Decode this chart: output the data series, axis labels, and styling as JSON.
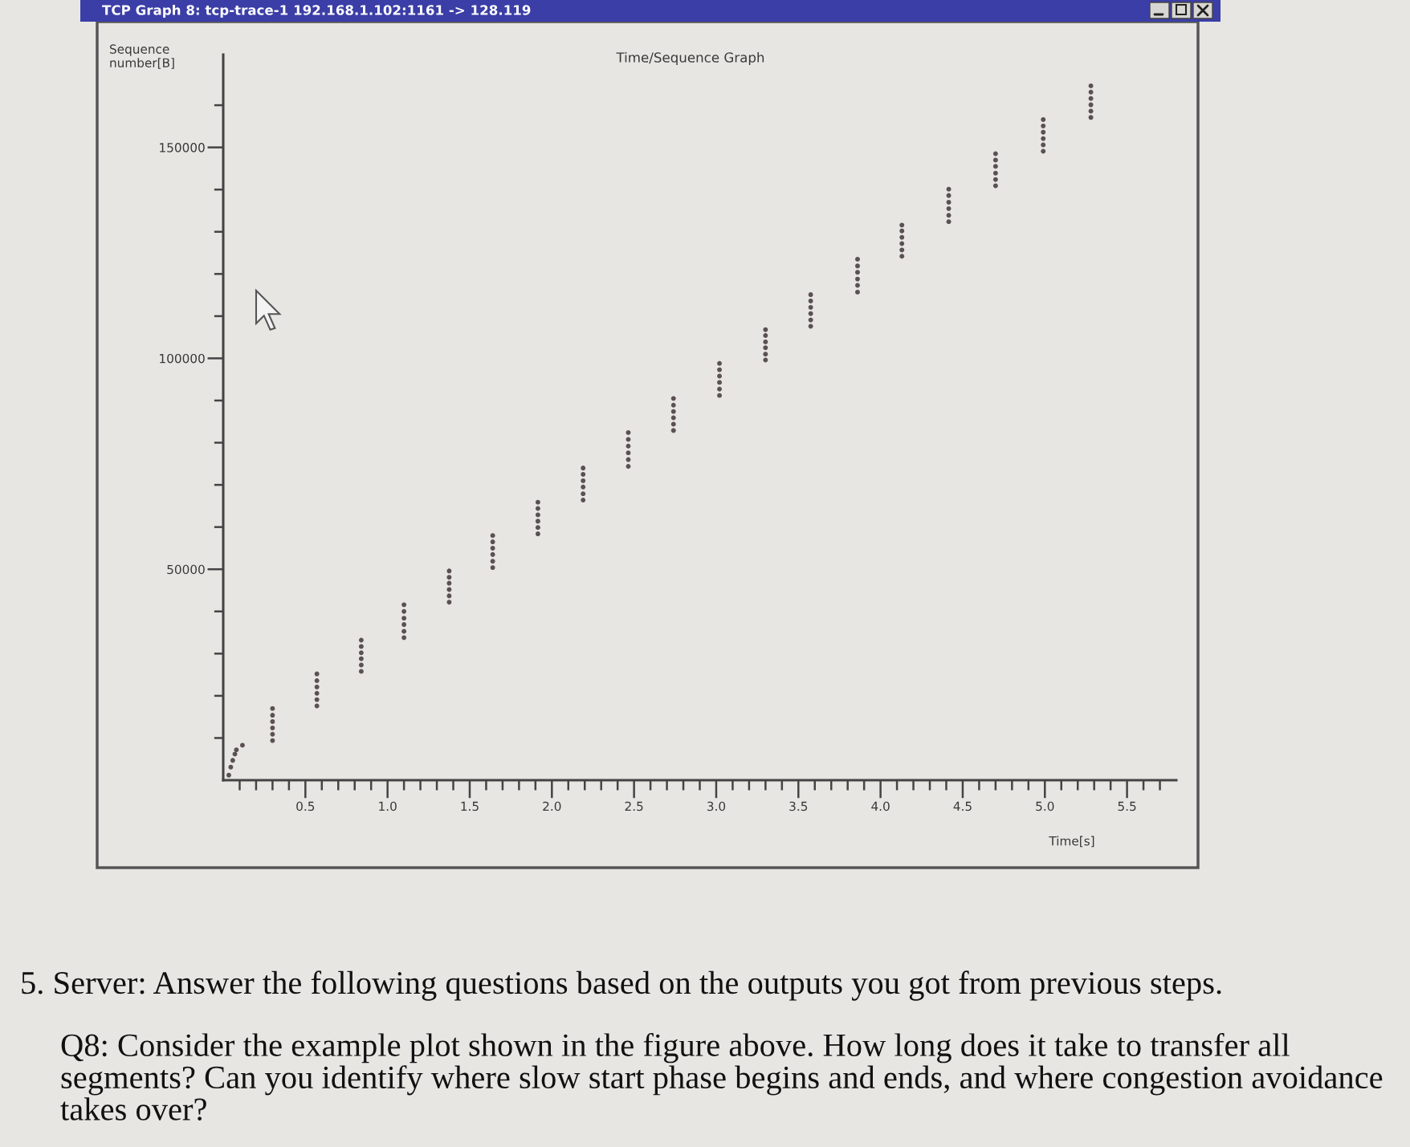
{
  "chart_data": {
    "type": "scatter",
    "title": "TCP Graph 8: tcp-trace-1 192.168.1.102:1161 -> 128.119",
    "subtitle": "Time/Sequence Graph",
    "xlabel": "Time[s]",
    "ylabel": "Sequence number[B]",
    "marker": "circle",
    "xlim": [
      0,
      5.8
    ],
    "ylim": [
      0,
      172000
    ],
    "xticks": [
      {
        "value": 0.1,
        "label": null
      },
      {
        "value": 0.2,
        "label": null
      },
      {
        "value": 0.3,
        "label": null
      },
      {
        "value": 0.4,
        "label": null
      },
      0.5,
      {
        "value": 0.6,
        "label": null
      },
      {
        "value": 0.7,
        "label": null
      },
      {
        "value": 0.8,
        "label": null
      },
      {
        "value": 0.9,
        "label": null
      },
      {
        "value": 1,
        "label": "1.0"
      },
      {
        "value": 1.1,
        "label": null
      },
      {
        "value": 1.2,
        "label": null
      },
      {
        "value": 1.3,
        "label": null
      },
      {
        "value": 1.4,
        "label": null
      },
      1.5,
      {
        "value": 1.6,
        "label": null
      },
      {
        "value": 1.7,
        "label": null
      },
      {
        "value": 1.8,
        "label": null
      },
      {
        "value": 1.9,
        "label": null
      },
      {
        "value": 2,
        "label": "2.0"
      },
      {
        "value": 2.1,
        "label": null
      },
      {
        "value": 2.2,
        "label": null
      },
      {
        "value": 2.3,
        "label": null
      },
      {
        "value": 2.4,
        "label": null
      },
      2.5,
      {
        "value": 2.6,
        "label": null
      },
      {
        "value": 2.7,
        "label": null
      },
      {
        "value": 2.8,
        "label": null
      },
      {
        "value": 2.9,
        "label": null
      },
      {
        "value": 3,
        "label": "3.0"
      },
      {
        "value": 3.1,
        "label": null
      },
      {
        "value": 3.2,
        "label": null
      },
      {
        "value": 3.3,
        "label": null
      },
      {
        "value": 3.4,
        "label": null
      },
      3.5,
      {
        "value": 3.6,
        "label": null
      },
      {
        "value": 3.7,
        "label": null
      },
      {
        "value": 3.8,
        "label": null
      },
      {
        "value": 3.9,
        "label": null
      },
      {
        "value": 4,
        "label": "4.0"
      },
      {
        "value": 4.1,
        "label": null
      },
      {
        "value": 4.2,
        "label": null
      },
      {
        "value": 4.3,
        "label": null
      },
      {
        "value": 4.4,
        "label": null
      },
      4.5,
      {
        "value": 4.6,
        "label": null
      },
      {
        "value": 4.7,
        "label": null
      },
      {
        "value": 4.8,
        "label": null
      },
      {
        "value": 4.9,
        "label": null
      },
      {
        "value": 5,
        "label": "5.0"
      },
      {
        "value": 5.1,
        "label": null
      },
      {
        "value": 5.2,
        "label": null
      },
      {
        "value": 5.3,
        "label": null
      },
      {
        "value": 5.4,
        "label": null
      },
      5.5,
      {
        "value": 5.6,
        "label": null
      },
      {
        "value": 5.7,
        "label": null
      }
    ],
    "yticks": [
      {
        "value": 10000,
        "label": null
      },
      {
        "value": 20000,
        "label": null
      },
      {
        "value": 30000,
        "label": null
      },
      {
        "value": 40000,
        "label": null
      },
      50000,
      {
        "value": 60000,
        "label": null
      },
      {
        "value": 70000,
        "label": null
      },
      {
        "value": 80000,
        "label": null
      },
      {
        "value": 90000,
        "label": null
      },
      100000,
      {
        "value": 110000,
        "label": null
      },
      {
        "value": 120000,
        "label": null
      },
      {
        "value": 130000,
        "label": null
      },
      {
        "value": 140000,
        "label": null
      },
      150000,
      {
        "value": 160000,
        "label": null
      }
    ],
    "series": [
      {
        "color": "#5b5153",
        "x": [
          0.034,
          0.046,
          0.058,
          0.071,
          0.08,
          0.117,
          0.3,
          0.3,
          0.3,
          0.3,
          0.3,
          0.3,
          0.57,
          0.57,
          0.57,
          0.57,
          0.57,
          0.57,
          0.84,
          0.84,
          0.84,
          0.84,
          0.84,
          0.84,
          1.1,
          1.1,
          1.1,
          1.1,
          1.1,
          1.1,
          1.375,
          1.375,
          1.375,
          1.375,
          1.375,
          1.375,
          1.64,
          1.64,
          1.64,
          1.64,
          1.64,
          1.64,
          1.915,
          1.915,
          1.915,
          1.915,
          1.915,
          1.915,
          2.19,
          2.19,
          2.19,
          2.19,
          2.19,
          2.19,
          2.465,
          2.465,
          2.465,
          2.465,
          2.465,
          2.465,
          2.74,
          2.74,
          2.74,
          2.74,
          2.74,
          2.74,
          3.02,
          3.02,
          3.02,
          3.02,
          3.02,
          3.02,
          3.3,
          3.3,
          3.3,
          3.3,
          3.3,
          3.3,
          3.575,
          3.575,
          3.575,
          3.575,
          3.575,
          3.575,
          3.86,
          3.86,
          3.86,
          3.86,
          3.86,
          3.86,
          4.13,
          4.13,
          4.13,
          4.13,
          4.13,
          4.13,
          4.415,
          4.415,
          4.415,
          4.415,
          4.415,
          4.415,
          4.7,
          4.7,
          4.7,
          4.7,
          4.7,
          4.7,
          4.99,
          4.99,
          4.99,
          4.99,
          4.99,
          4.99,
          5.28,
          5.28,
          5.28,
          5.28,
          5.28,
          5.28
        ],
        "values": [
          1200,
          3100,
          4700,
          6200,
          7200,
          8300,
          9400,
          10900,
          12400,
          13900,
          15400,
          17000,
          17600,
          19100,
          20600,
          22100,
          23600,
          25200,
          25800,
          27300,
          28800,
          30200,
          31700,
          33200,
          33800,
          35300,
          36900,
          38400,
          40000,
          41600,
          42200,
          43700,
          45200,
          46700,
          48100,
          49600,
          50400,
          51900,
          53500,
          55000,
          56500,
          58000,
          58400,
          59900,
          61400,
          62900,
          64400,
          65900,
          66400,
          67900,
          69500,
          71000,
          72500,
          74000,
          74400,
          76000,
          77600,
          79200,
          80800,
          82400,
          82900,
          84400,
          85900,
          87400,
          88900,
          90500,
          91200,
          92700,
          94300,
          95800,
          97300,
          98800,
          99600,
          101000,
          102500,
          103900,
          105400,
          106800,
          107600,
          109100,
          110600,
          112100,
          113600,
          115100,
          115700,
          117300,
          118800,
          120400,
          121900,
          123500,
          124200,
          125700,
          127200,
          128700,
          130200,
          131600,
          132400,
          133900,
          135500,
          137000,
          138600,
          140100,
          140900,
          142400,
          143900,
          145500,
          147000,
          148500,
          149100,
          150600,
          152100,
          153600,
          155100,
          156600,
          157100,
          158600,
          160100,
          161600,
          163100,
          164600
        ]
      }
    ],
    "annotations": [
      "5. Server: Answer the following questions based on the outputs you got from previous steps.",
      "Q8: Consider the example plot shown in the figure above. How long does it take to transfer all segments? Can you identify where slow start phase begins and ends, and where congestion avoidance takes over?"
    ]
  }
}
